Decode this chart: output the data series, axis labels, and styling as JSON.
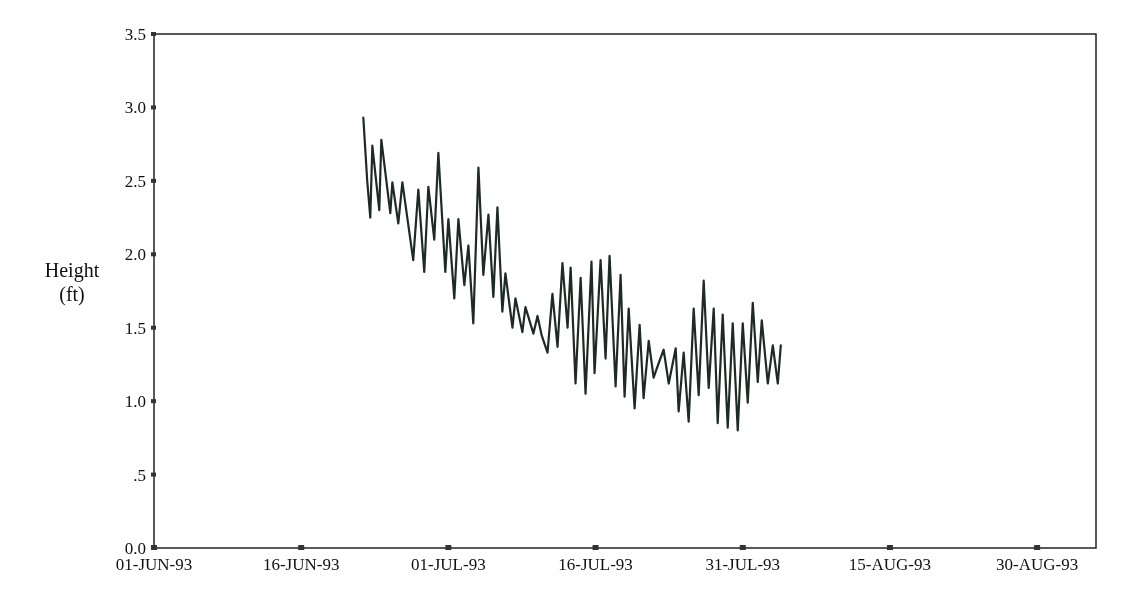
{
  "chart_data": {
    "type": "line",
    "ylabel": "Height (ft)",
    "xlim": [
      "1993-06-01",
      "1993-09-05"
    ],
    "xticks": [
      {
        "value": "1993-06-01",
        "label": "01-JUN-93"
      },
      {
        "value": "1993-06-16",
        "label": "16-JUN-93"
      },
      {
        "value": "1993-07-01",
        "label": "01-JUL-93"
      },
      {
        "value": "1993-07-16",
        "label": "16-JUL-93"
      },
      {
        "value": "1993-07-31",
        "label": "31-JUL-93"
      },
      {
        "value": "1993-08-15",
        "label": "15-AUG-93"
      },
      {
        "value": "1993-08-30",
        "label": "30-AUG-93"
      }
    ],
    "ylim": [
      0,
      3.5
    ],
    "yticks": [
      {
        "value": 0,
        "label": "0.0"
      },
      {
        "value": 0.5,
        "label": ".5"
      },
      {
        "value": 1,
        "label": "1.0"
      },
      {
        "value": 1.5,
        "label": "1.5"
      },
      {
        "value": 2,
        "label": "2.0"
      },
      {
        "value": 2.5,
        "label": "2.5"
      },
      {
        "value": 3,
        "label": "3.0"
      },
      {
        "value": 3.5,
        "label": "3.5"
      }
    ],
    "grid": false,
    "marker": "none",
    "line_style": "solid",
    "series": [
      {
        "color": "#1e2b24",
        "x": [
          "1993-06-22T08:00",
          "1993-06-22T17:30",
          "1993-06-23T01:00",
          "1993-06-23T06:00",
          "1993-06-23T23:00",
          "1993-06-24T04:00",
          "1993-06-25T02:00",
          "1993-06-25T07:00",
          "1993-06-25T21:30",
          "1993-06-26T07:30",
          "1993-06-27T10:00",
          "1993-06-27T22:30",
          "1993-06-28T13:00",
          "1993-06-28T23:00",
          "1993-06-29T13:30",
          "1993-06-29T23:30",
          "1993-06-30T16:30",
          "1993-07-01T00:00",
          "1993-07-01T14:30",
          "1993-07-02T00:30",
          "1993-07-02T15:00",
          "1993-07-03T01:00",
          "1993-07-03T13:00",
          "1993-07-04T01:30",
          "1993-07-04T13:30",
          "1993-07-05T02:00",
          "1993-07-05T14:00",
          "1993-07-06T00:00",
          "1993-07-06T12:00",
          "1993-07-06T19:30",
          "1993-07-07T12:45",
          "1993-07-07T20:00",
          "1993-07-08T13:00",
          "1993-07-08T20:30",
          "1993-07-09T16:00",
          "1993-07-10T02:00",
          "1993-07-10T12:00",
          "1993-07-11T02:30",
          "1993-07-11T14:30",
          "1993-07-12T03:00",
          "1993-07-12T15:00",
          "1993-07-13T03:30",
          "1993-07-13T11:00",
          "1993-07-13T23:00",
          "1993-07-14T11:30",
          "1993-07-14T23:30",
          "1993-07-15T14:00",
          "1993-07-15T21:30",
          "1993-07-16T12:15",
          "1993-07-17T00:30",
          "1993-07-17T10:15",
          "1993-07-18T01:00",
          "1993-07-18T13:15",
          "1993-07-18T23:00",
          "1993-07-19T09:00",
          "1993-07-19T23:30",
          "1993-07-20T11:45",
          "1993-07-20T21:30",
          "1993-07-21T10:00",
          "1993-07-21T22:00",
          "1993-07-22T08:00",
          "1993-07-22T22:30",
          "1993-07-23T11:00",
          "1993-07-24T04:00",
          "1993-07-24T11:15",
          "1993-07-24T23:30",
          "1993-07-25T11:45",
          "1993-07-26T00:00",
          "1993-07-26T12:15",
          "1993-07-27T00:30",
          "1993-07-27T12:45",
          "1993-07-28T01:00",
          "1993-07-28T10:45",
          "1993-07-28T23:00",
          "1993-07-29T11:15",
          "1993-07-29T23:30",
          "1993-07-30T11:45",
          "1993-07-31T00:00",
          "1993-07-31T12:15",
          "1993-08-01T00:30",
          "1993-08-01T12:45",
          "1993-08-01T22:30",
          "1993-08-02T13:15",
          "1993-08-03T01:30",
          "1993-08-03T13:45",
          "1993-08-03T21:00"
        ],
        "values": [
          2.93,
          2.5,
          2.25,
          2.74,
          2.3,
          2.78,
          2.28,
          2.49,
          2.21,
          2.49,
          1.96,
          2.44,
          1.88,
          2.46,
          2.1,
          2.69,
          1.88,
          2.24,
          1.7,
          2.24,
          1.79,
          2.06,
          1.53,
          2.59,
          1.86,
          2.27,
          1.71,
          2.32,
          1.61,
          1.87,
          1.5,
          1.7,
          1.47,
          1.64,
          1.46,
          1.58,
          1.45,
          1.33,
          1.73,
          1.37,
          1.94,
          1.5,
          1.91,
          1.12,
          1.84,
          1.05,
          1.95,
          1.19,
          1.96,
          1.29,
          1.99,
          1.1,
          1.86,
          1.03,
          1.63,
          0.95,
          1.52,
          1.02,
          1.41,
          1.16,
          1.24,
          1.35,
          1.12,
          1.36,
          0.93,
          1.33,
          0.86,
          1.63,
          1.04,
          1.82,
          1.09,
          1.63,
          0.85,
          1.59,
          0.82,
          1.53,
          0.8,
          1.53,
          0.99,
          1.67,
          1.13,
          1.55,
          1.12,
          1.38,
          1.12,
          1.38
        ]
      }
    ]
  }
}
